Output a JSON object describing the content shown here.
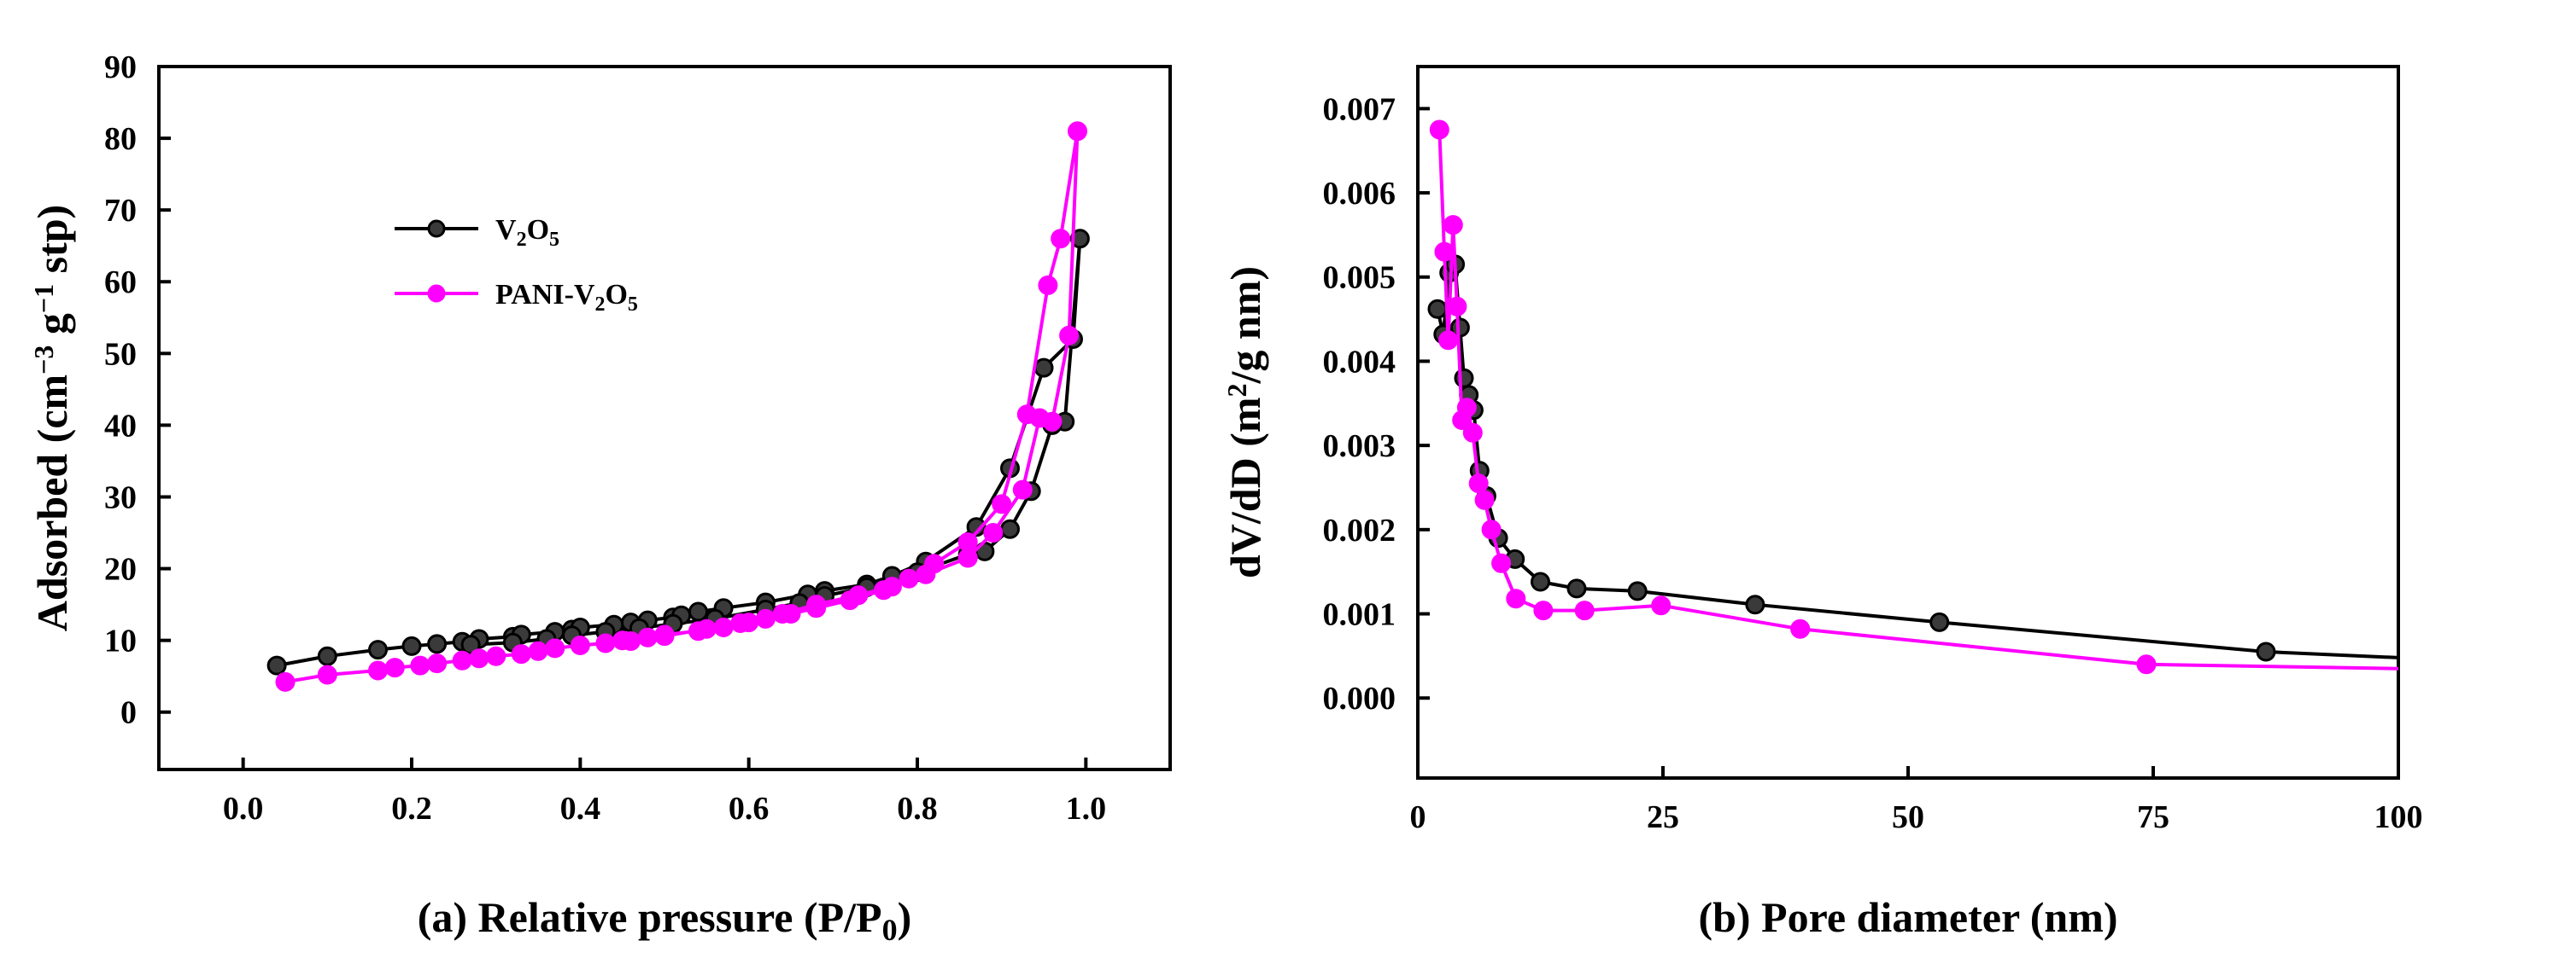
{
  "figure": {
    "panels": [
      "a",
      "b"
    ]
  },
  "chart_data": [
    {
      "id": "a",
      "type": "line",
      "title": "",
      "xlabel": {
        "prefix": "(a) Relative pressure (P/P",
        "sub": "0",
        "suffix": ")"
      },
      "ylabel": {
        "t1": "Adsorbed (cm",
        "sup1": "−3",
        "t2": " g",
        "sup2": "−1",
        "t3": " stp)"
      },
      "xlim": [
        -0.1,
        1.1
      ],
      "ylim": [
        -8,
        90
      ],
      "xticks": [
        0.0,
        0.2,
        0.4,
        0.6,
        0.8,
        1.0
      ],
      "xtick_labels": [
        "0.0",
        "0.2",
        "0.4",
        "0.6",
        "0.8",
        "1.0"
      ],
      "yticks": [
        0,
        10,
        20,
        30,
        40,
        50,
        60,
        70,
        80,
        90
      ],
      "ytick_labels": [
        "0",
        "10",
        "20",
        "30",
        "40",
        "50",
        "60",
        "70",
        "80",
        "90"
      ],
      "legend_position": "upper-left",
      "legend": [
        {
          "label_main": "V",
          "sub1": "2",
          "mid": "O",
          "sub2": "5",
          "suffix": "",
          "series_index": 0
        },
        {
          "label_main": "PANI-V",
          "sub1": "2",
          "mid": "O",
          "sub2": "5",
          "suffix": "",
          "series_index": 1
        }
      ],
      "series": [
        {
          "name": "V2O5",
          "color": "#000000",
          "marker_fill": "#3a3a3a",
          "x": [
            0.04,
            0.1,
            0.16,
            0.2,
            0.23,
            0.26,
            0.28,
            0.32,
            0.33,
            0.37,
            0.39,
            0.4,
            0.44,
            0.46,
            0.48,
            0.51,
            0.52,
            0.54,
            0.57,
            0.62,
            0.67,
            0.69,
            0.74,
            0.77,
            0.81,
            0.87,
            0.91,
            0.95,
            0.985,
            0.993,
            0.975,
            0.96,
            0.935,
            0.91,
            0.88,
            0.86,
            0.8,
            0.74,
            0.69,
            0.66,
            0.62,
            0.56,
            0.51,
            0.47,
            0.43,
            0.39,
            0.36,
            0.32,
            0.27
          ],
          "y": [
            6.5,
            7.8,
            8.7,
            9.2,
            9.5,
            9.8,
            10.2,
            10.5,
            10.8,
            11.2,
            11.5,
            11.8,
            12.2,
            12.5,
            12.8,
            13.2,
            13.5,
            14.0,
            14.5,
            15.3,
            16.4,
            16.9,
            17.8,
            19.0,
            21.0,
            25.8,
            34.0,
            48.0,
            52.0,
            66.0,
            40.5,
            40.0,
            30.8,
            25.5,
            22.4,
            22.0,
            19.5,
            17.4,
            16.2,
            15.2,
            14.3,
            13.0,
            12.3,
            11.7,
            11.2,
            10.7,
            10.2,
            9.7,
            9.4
          ]
        },
        {
          "name": "PANI-V2O5",
          "color": "#ff00ff",
          "marker_fill": "#ff00ff",
          "x": [
            0.05,
            0.1,
            0.16,
            0.18,
            0.21,
            0.23,
            0.26,
            0.28,
            0.3,
            0.33,
            0.35,
            0.37,
            0.4,
            0.43,
            0.45,
            0.48,
            0.5,
            0.54,
            0.57,
            0.59,
            0.62,
            0.65,
            0.68,
            0.72,
            0.76,
            0.79,
            0.82,
            0.86,
            0.9,
            0.93,
            0.955,
            0.97,
            0.99,
            0.98,
            0.96,
            0.945,
            0.925,
            0.89,
            0.86,
            0.81,
            0.77,
            0.73,
            0.68,
            0.64,
            0.6,
            0.55,
            0.5,
            0.46
          ],
          "y": [
            4.2,
            5.2,
            5.8,
            6.2,
            6.5,
            6.8,
            7.2,
            7.5,
            7.8,
            8.1,
            8.5,
            8.9,
            9.3,
            9.6,
            10.0,
            10.4,
            10.8,
            11.3,
            11.8,
            12.4,
            13.0,
            13.7,
            14.5,
            15.6,
            17.0,
            18.6,
            20.7,
            23.7,
            29.0,
            41.5,
            59.5,
            66.0,
            81.0,
            52.5,
            40.5,
            41.0,
            31.0,
            25.0,
            21.5,
            19.2,
            17.5,
            16.3,
            15.0,
            13.7,
            12.5,
            11.6,
            10.6,
            9.9
          ]
        }
      ]
    },
    {
      "id": "b",
      "type": "line",
      "title": "",
      "xlabel": {
        "text": "(b) Pore diameter (nm)"
      },
      "ylabel": {
        "t1": "dV/dD (m",
        "sup1": "2",
        "t2": "/g nm)"
      },
      "xlim": [
        0,
        100
      ],
      "ylim": [
        -0.00095,
        0.0075
      ],
      "xticks": [
        0,
        25,
        50,
        75,
        100
      ],
      "xtick_labels": [
        "0",
        "25",
        "50",
        "75",
        "100"
      ],
      "yticks": [
        0.0,
        0.001,
        0.002,
        0.003,
        0.004,
        0.005,
        0.006,
        0.007
      ],
      "ytick_labels": [
        "0.000",
        "0.001",
        "0.002",
        "0.003",
        "0.004",
        "0.005",
        "0.006",
        "0.007"
      ],
      "series": [
        {
          "name": "V2O5",
          "color": "#000000",
          "marker_fill": "#3a3a3a",
          "x": [
            2.0,
            2.6,
            3.2,
            3.8,
            4.3,
            4.7,
            5.2,
            5.7,
            6.3,
            7.0,
            8.2,
            9.9,
            12.5,
            16.2,
            22.4,
            34.4,
            53.2,
            86.5,
            100
          ],
          "y": [
            0.00462,
            0.00432,
            0.00505,
            0.00515,
            0.0044,
            0.0038,
            0.0036,
            0.00342,
            0.0027,
            0.0024,
            0.0019,
            0.00165,
            0.00138,
            0.0013,
            0.00127,
            0.00111,
            0.0009,
            0.00055,
            0.00048
          ],
          "markers": [
            true,
            true,
            true,
            true,
            true,
            true,
            true,
            true,
            true,
            true,
            true,
            true,
            true,
            true,
            true,
            true,
            true,
            true,
            false
          ]
        },
        {
          "name": "PANI-V2O5",
          "color": "#ff00ff",
          "marker_fill": "#ff00ff",
          "x": [
            2.2,
            2.7,
            3.1,
            3.6,
            4.0,
            4.5,
            5.0,
            5.6,
            6.2,
            6.8,
            7.5,
            8.5,
            10.0,
            12.8,
            17.0,
            24.8,
            39.0,
            74.3,
            100
          ],
          "y": [
            0.00675,
            0.0053,
            0.00425,
            0.00562,
            0.00465,
            0.0033,
            0.00345,
            0.00315,
            0.00255,
            0.00235,
            0.002,
            0.0016,
            0.00118,
            0.00104,
            0.00104,
            0.0011,
            0.00082,
            0.0004,
            0.00035
          ],
          "markers": [
            true,
            true,
            true,
            true,
            true,
            true,
            true,
            true,
            true,
            true,
            true,
            true,
            true,
            true,
            true,
            true,
            true,
            true,
            false
          ]
        }
      ]
    }
  ]
}
